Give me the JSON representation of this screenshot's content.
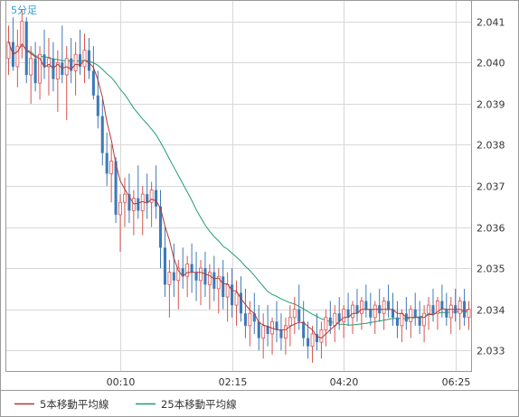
{
  "chart_data": {
    "type": "candlestick",
    "interval_label": "5分足",
    "x_tick_labels": [
      "00:10",
      "02:15",
      "04:20",
      "06:25"
    ],
    "x_tick_bar_index": [
      25,
      50,
      75,
      100
    ],
    "ylim": [
      2.0325,
      2.0415
    ],
    "y_ticks": [
      2.033,
      2.034,
      2.035,
      2.036,
      2.037,
      2.038,
      2.039,
      2.04,
      2.041
    ],
    "grid": true,
    "legend_position": "bottom-left",
    "colors": {
      "up": "#d9534f",
      "down": "#3d7ab8",
      "ma5": "#b03a3a",
      "ma25": "#1f9e6e",
      "grid": "#d8d8d8",
      "frame": "#9a9a9a"
    },
    "series": [
      {
        "name": "5本移動平均線",
        "color": "#b03a3a"
      },
      {
        "name": "25本移動平均線",
        "color": "#1f9e6e"
      }
    ],
    "candles": [
      [
        2.0401,
        2.0409,
        2.0397,
        2.0405
      ],
      [
        2.0405,
        2.0411,
        2.0398,
        2.0399
      ],
      [
        2.0399,
        2.0408,
        2.0394,
        2.0404
      ],
      [
        2.0404,
        2.0413,
        2.0401,
        2.041
      ],
      [
        2.041,
        2.0411,
        2.0395,
        2.0397
      ],
      [
        2.0397,
        2.0404,
        2.039,
        2.0401
      ],
      [
        2.0401,
        2.0405,
        2.0393,
        2.0395
      ],
      [
        2.0395,
        2.0404,
        2.0391,
        2.0402
      ],
      [
        2.0402,
        2.0408,
        2.0396,
        2.0399
      ],
      [
        2.0399,
        2.0406,
        2.0392,
        2.0401
      ],
      [
        2.0401,
        2.0405,
        2.0393,
        2.0396
      ],
      [
        2.0396,
        2.0403,
        2.0388,
        2.04
      ],
      [
        2.04,
        2.0409,
        2.0395,
        2.0397
      ],
      [
        2.0397,
        2.0404,
        2.0386,
        2.0401
      ],
      [
        2.0401,
        2.0406,
        2.0395,
        2.0398
      ],
      [
        2.0398,
        2.0405,
        2.0392,
        2.0402
      ],
      [
        2.0402,
        2.0408,
        2.0397,
        2.0399
      ],
      [
        2.0399,
        2.0407,
        2.0395,
        2.0403
      ],
      [
        2.0403,
        2.0406,
        2.0396,
        2.0398
      ],
      [
        2.0398,
        2.0404,
        2.0391,
        2.0392
      ],
      [
        2.0392,
        2.0398,
        2.0384,
        2.0387
      ],
      [
        2.0387,
        2.0391,
        2.0375,
        2.0378
      ],
      [
        2.0378,
        2.0383,
        2.037,
        2.0373
      ],
      [
        2.0373,
        2.038,
        2.0366,
        2.0376
      ],
      [
        2.0376,
        2.0377,
        2.0361,
        2.0363
      ],
      [
        2.0363,
        2.0368,
        2.0354,
        2.0366
      ],
      [
        2.0366,
        2.0372,
        2.036,
        2.0368
      ],
      [
        2.0368,
        2.0373,
        2.0361,
        2.0364
      ],
      [
        2.0364,
        2.0369,
        2.0358,
        2.0367
      ],
      [
        2.0367,
        2.0375,
        2.0362,
        2.0364
      ],
      [
        2.0364,
        2.037,
        2.0358,
        2.0368
      ],
      [
        2.0368,
        2.0373,
        2.0362,
        2.0366
      ],
      [
        2.0366,
        2.0371,
        2.036,
        2.0369
      ],
      [
        2.0369,
        2.0375,
        2.0362,
        2.0365
      ],
      [
        2.0365,
        2.0369,
        2.035,
        2.0355
      ],
      [
        2.0355,
        2.036,
        2.0343,
        2.0346
      ],
      [
        2.0346,
        2.0352,
        2.0338,
        2.0349
      ],
      [
        2.0349,
        2.0356,
        2.0343,
        2.0347
      ],
      [
        2.0347,
        2.0352,
        2.034,
        2.035
      ],
      [
        2.035,
        2.0355,
        2.0345,
        2.0348
      ],
      [
        2.0348,
        2.0353,
        2.0343,
        2.0351
      ],
      [
        2.0351,
        2.0356,
        2.0344,
        2.0349
      ],
      [
        2.0349,
        2.0354,
        2.0342,
        2.0347
      ],
      [
        2.0347,
        2.0352,
        2.0341,
        2.035
      ],
      [
        2.035,
        2.0354,
        2.0343,
        2.0346
      ],
      [
        2.0346,
        2.0351,
        2.034,
        2.0349
      ],
      [
        2.0349,
        2.0353,
        2.0342,
        2.0345
      ],
      [
        2.0345,
        2.035,
        2.0339,
        2.0348
      ],
      [
        2.0348,
        2.0352,
        2.034,
        2.0343
      ],
      [
        2.0343,
        2.0349,
        2.0337,
        2.0346
      ],
      [
        2.0346,
        2.035,
        2.0338,
        2.0341
      ],
      [
        2.0341,
        2.0347,
        2.0336,
        2.0344
      ],
      [
        2.0344,
        2.0348,
        2.0337,
        2.0339
      ],
      [
        2.0339,
        2.0345,
        2.0333,
        2.0336
      ],
      [
        2.0336,
        2.0342,
        2.0331,
        2.0339
      ],
      [
        2.0339,
        2.0344,
        2.0334,
        2.0337
      ],
      [
        2.0337,
        2.0341,
        2.033,
        2.0333
      ],
      [
        2.0333,
        2.0339,
        2.0328,
        2.0336
      ],
      [
        2.0336,
        2.0341,
        2.0331,
        2.0334
      ],
      [
        2.0334,
        2.0338,
        2.0329,
        2.0337
      ],
      [
        2.0337,
        2.0342,
        2.0332,
        2.0335
      ],
      [
        2.0335,
        2.0339,
        2.033,
        2.0333
      ],
      [
        2.0333,
        2.0338,
        2.0329,
        2.0336
      ],
      [
        2.0336,
        2.0341,
        2.0331,
        2.0338
      ],
      [
        2.0338,
        2.0343,
        2.0334,
        2.034
      ],
      [
        2.034,
        2.0346,
        2.0335,
        2.0337
      ],
      [
        2.0337,
        2.0342,
        2.0331,
        2.0333
      ],
      [
        2.0333,
        2.0337,
        2.0328,
        2.0331
      ],
      [
        2.0331,
        2.0336,
        2.0327,
        2.0334
      ],
      [
        2.0334,
        2.0339,
        2.033,
        2.0332
      ],
      [
        2.0332,
        2.0337,
        2.0328,
        2.0335
      ],
      [
        2.0335,
        2.034,
        2.0331,
        2.0338
      ],
      [
        2.0338,
        2.0342,
        2.0334,
        2.0336
      ],
      [
        2.0336,
        2.0341,
        2.0332,
        2.0339
      ],
      [
        2.0339,
        2.0343,
        2.0335,
        2.0337
      ],
      [
        2.0337,
        2.0341,
        2.0333,
        2.034
      ],
      [
        2.034,
        2.0344,
        2.0336,
        2.0338
      ],
      [
        2.0338,
        2.0342,
        2.0334,
        2.0341
      ],
      [
        2.0341,
        2.0345,
        2.0337,
        2.0339
      ],
      [
        2.0339,
        2.0343,
        2.0335,
        2.0342
      ],
      [
        2.0342,
        2.0346,
        2.0338,
        2.034
      ],
      [
        2.034,
        2.0344,
        2.0336,
        2.0338
      ],
      [
        2.0338,
        2.0342,
        2.0334,
        2.0341
      ],
      [
        2.0341,
        2.0345,
        2.0337,
        2.0339
      ],
      [
        2.0339,
        2.0343,
        2.0335,
        2.0342
      ],
      [
        2.0342,
        2.0346,
        2.0338,
        2.034
      ],
      [
        2.034,
        2.0344,
        2.0336,
        2.0338
      ],
      [
        2.0338,
        2.0342,
        2.0333,
        2.0336
      ],
      [
        2.0336,
        2.034,
        2.0332,
        2.0339
      ],
      [
        2.0339,
        2.0343,
        2.0335,
        2.0337
      ],
      [
        2.0337,
        2.0341,
        2.0333,
        2.034
      ],
      [
        2.034,
        2.0344,
        2.0336,
        2.0338
      ],
      [
        2.0338,
        2.0342,
        2.0334,
        2.0336
      ],
      [
        2.0336,
        2.0341,
        2.0332,
        2.0339
      ],
      [
        2.0339,
        2.0343,
        2.0335,
        2.0341
      ],
      [
        2.0341,
        2.0345,
        2.0337,
        2.0339
      ],
      [
        2.0339,
        2.0343,
        2.0335,
        2.0342
      ],
      [
        2.0342,
        2.0346,
        2.0338,
        2.034
      ],
      [
        2.034,
        2.0344,
        2.0336,
        2.0338
      ],
      [
        2.0338,
        2.0343,
        2.0334,
        2.0341
      ],
      [
        2.0341,
        2.0345,
        2.0337,
        2.0339
      ],
      [
        2.0339,
        2.0343,
        2.0335,
        2.0342
      ],
      [
        2.0342,
        2.0345,
        2.0336,
        2.0338
      ],
      [
        2.0338,
        2.0342,
        2.0335,
        2.034
      ]
    ]
  }
}
